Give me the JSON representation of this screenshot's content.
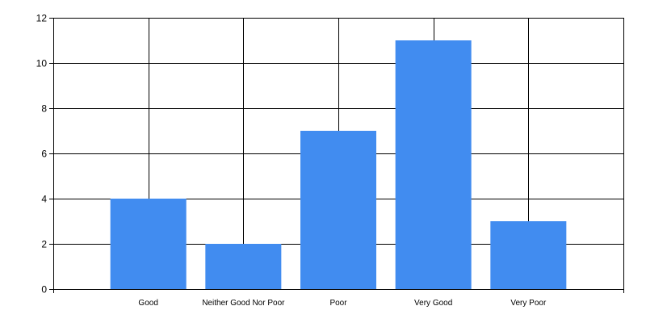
{
  "colors": {
    "bar": "#418CF0",
    "grid": "#000000",
    "axis": "#000000",
    "background": "#FFFFFF"
  },
  "chart_data": {
    "type": "bar",
    "categories": [
      "Good",
      "Neither Good Nor Poor",
      "Poor",
      "Very Good",
      "Very Poor"
    ],
    "values": [
      4,
      2,
      7,
      11,
      3
    ],
    "title": "",
    "xlabel": "",
    "ylabel": "",
    "ylim": [
      0,
      12
    ],
    "yticks": [
      0,
      2,
      4,
      6,
      8,
      10,
      12
    ],
    "grid": true,
    "legend": "none"
  }
}
